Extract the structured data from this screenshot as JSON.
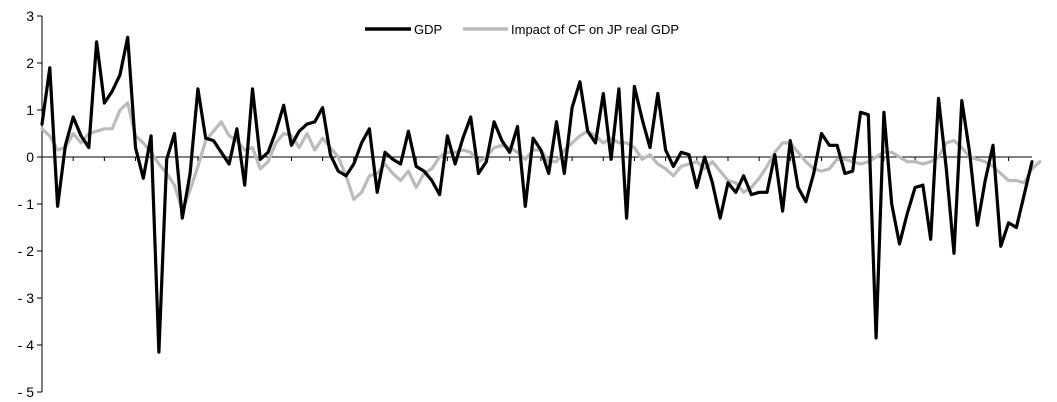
{
  "chart_data": {
    "type": "line",
    "title": "",
    "xlabel": "",
    "ylabel": "",
    "ylim": [
      -5,
      3
    ],
    "yticks": [
      3,
      2,
      1,
      0,
      -1,
      -2,
      -3,
      -4,
      -5
    ],
    "grid": false,
    "legend_position": "top-center",
    "series": [
      {
        "name": "GDP",
        "color": "#000000",
        "values": [
          0.7,
          1.9,
          -1.05,
          0.25,
          0.85,
          0.45,
          0.2,
          2.45,
          1.15,
          1.4,
          1.75,
          2.55,
          0.2,
          -0.45,
          0.45,
          -4.15,
          -0.05,
          0.5,
          -1.3,
          -0.35,
          1.45,
          0.4,
          0.35,
          0.1,
          -0.15,
          0.6,
          -0.6,
          1.45,
          -0.05,
          0.1,
          0.55,
          1.1,
          0.25,
          0.55,
          0.7,
          0.75,
          1.05,
          0.05,
          -0.3,
          -0.4,
          -0.15,
          0.3,
          0.6,
          -0.75,
          0.1,
          -0.05,
          -0.15,
          0.55,
          -0.2,
          -0.3,
          -0.5,
          -0.8,
          0.45,
          -0.15,
          0.4,
          0.85,
          -0.35,
          -0.1,
          0.75,
          0.35,
          0.1,
          0.65,
          -1.05,
          0.4,
          0.15,
          -0.35,
          0.75,
          -0.35,
          1.05,
          1.6,
          0.55,
          0.3,
          1.35,
          -0.05,
          1.45,
          -1.3,
          1.5,
          0.8,
          0.2,
          1.35,
          0.15,
          -0.2,
          0.1,
          0.05,
          -0.65,
          0.0,
          -0.55,
          -1.3,
          -0.55,
          -0.75,
          -0.4,
          -0.8,
          -0.75,
          -0.75,
          0.05,
          -1.15,
          0.35,
          -0.65,
          -0.95,
          -0.35,
          0.5,
          0.25,
          0.25,
          -0.35,
          -0.3,
          0.95,
          0.9,
          -3.85,
          0.95,
          -1.0,
          -1.85,
          -1.2,
          -0.65,
          -0.6,
          -1.75,
          1.25,
          -0.25,
          -2.05,
          1.2,
          0.1,
          -1.45,
          -0.5,
          0.25,
          -1.9,
          -1.4,
          -1.5,
          -0.8,
          -0.1
        ],
        "stroke_width": 3.2
      },
      {
        "name": "Impact of CF on JP real GDP",
        "color": "#bbbbbb",
        "values": [
          0.6,
          0.45,
          0.15,
          0.2,
          0.5,
          0.3,
          0.5,
          0.55,
          0.6,
          0.6,
          1.0,
          1.15,
          0.45,
          0.3,
          0.1,
          -0.15,
          -0.35,
          -0.6,
          -1.15,
          -0.7,
          -0.2,
          0.35,
          0.55,
          0.75,
          0.45,
          0.35,
          0.15,
          0.2,
          -0.25,
          -0.1,
          0.3,
          0.5,
          0.45,
          0.2,
          0.5,
          0.15,
          0.4,
          0.2,
          0.0,
          -0.4,
          -0.9,
          -0.75,
          -0.4,
          -0.35,
          -0.15,
          -0.35,
          -0.5,
          -0.3,
          -0.65,
          -0.35,
          -0.25,
          0.0,
          0.1,
          0.1,
          0.15,
          0.1,
          -0.1,
          0.0,
          0.2,
          0.25,
          0.2,
          0.1,
          -0.05,
          0.15,
          0.15,
          -0.1,
          -0.1,
          0.15,
          0.3,
          0.45,
          0.55,
          0.45,
          0.3,
          0.4,
          0.3,
          0.3,
          0.2,
          -0.05,
          0.05,
          -0.15,
          -0.25,
          -0.4,
          -0.2,
          -0.15,
          -0.1,
          -0.25,
          -0.1,
          -0.3,
          -0.5,
          -0.55,
          -0.75,
          -0.65,
          -0.45,
          -0.2,
          0.1,
          0.3,
          0.3,
          0.1,
          -0.1,
          -0.25,
          -0.3,
          -0.25,
          -0.05,
          -0.05,
          -0.1,
          -0.15,
          -0.1,
          0.0,
          0.1,
          0.1,
          0.0,
          -0.1,
          -0.1,
          -0.15,
          -0.1,
          0.0,
          0.3,
          0.35,
          0.2,
          0.0,
          -0.05,
          -0.1,
          -0.2,
          -0.35,
          -0.5,
          -0.5,
          -0.55,
          -0.25,
          -0.1
        ],
        "stroke_width": 3.2
      }
    ]
  }
}
